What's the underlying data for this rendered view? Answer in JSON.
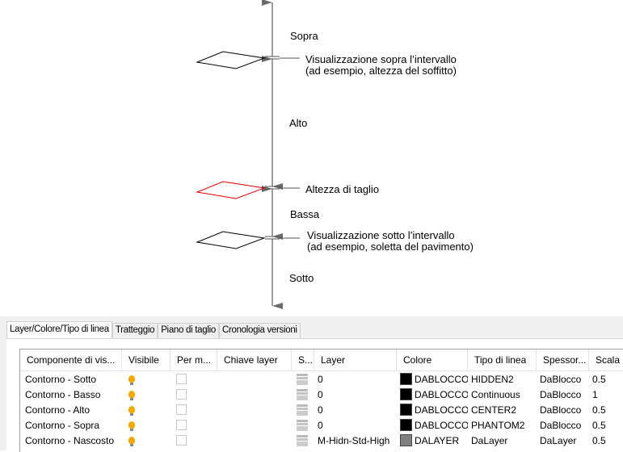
{
  "diagram": {
    "labels": {
      "above": "Sopra",
      "high": "Alto",
      "low": "Bassa",
      "below": "Sotto",
      "view_above_1": "Visualizzazione sopra l’intervallo",
      "view_above_2": "(ad esempio, altezza del soffitto)",
      "cut": "Altezza di taglio",
      "view_below_1": "Visualizzazione sotto l’intervallo",
      "view_below_2": "(ad esempio, soletta del pavimento)"
    },
    "colors": {
      "axis": "#6a6a6a",
      "cut_plane": "#e00000",
      "plane": "#000000"
    }
  },
  "tabs": [
    {
      "label": "Layer/Colore/Tipo di linea",
      "active": true
    },
    {
      "label": "Tratteggio",
      "active": false
    },
    {
      "label": "Piano di taglio",
      "active": false
    },
    {
      "label": "Cronologia versioni",
      "active": false
    }
  ],
  "table": {
    "columns": [
      "Componente di vis...",
      "Visibile",
      "Per m...",
      "Chiave layer",
      "S...",
      "Layer",
      "Colore",
      "Tipo di linea",
      "Spessor...",
      "Scala"
    ],
    "rows": [
      {
        "component": "Contorno - Sotto",
        "visible": true,
        "per_m": false,
        "layer_key": "",
        "layer": "0",
        "color": "DABLOCCO",
        "swatch": "#000000",
        "linetype": "HIDDEN2",
        "lineweight": "DaBlocco",
        "scale": "0.5"
      },
      {
        "component": "Contorno - Basso",
        "visible": true,
        "per_m": false,
        "layer_key": "",
        "layer": "0",
        "color": "DABLOCCO",
        "swatch": "#000000",
        "linetype": "Continuous",
        "lineweight": "DaBlocco",
        "scale": "1"
      },
      {
        "component": "Contorno - Alto",
        "visible": true,
        "per_m": false,
        "layer_key": "",
        "layer": "0",
        "color": "DABLOCCO",
        "swatch": "#000000",
        "linetype": "CENTER2",
        "lineweight": "DaBlocco",
        "scale": "0.5"
      },
      {
        "component": "Contorno - Sopra",
        "visible": true,
        "per_m": false,
        "layer_key": "",
        "layer": "0",
        "color": "DABLOCCO",
        "swatch": "#000000",
        "linetype": "PHANTOM2",
        "lineweight": "DaBlocco",
        "scale": "0.5"
      },
      {
        "component": "Contorno - Nascosto",
        "visible": true,
        "per_m": false,
        "layer_key": "",
        "layer": "M-Hidn-Std-High",
        "color": "DALAYER",
        "swatch": "#808080",
        "linetype": "DaLayer",
        "lineweight": "DaLayer",
        "scale": "0.5"
      }
    ]
  }
}
